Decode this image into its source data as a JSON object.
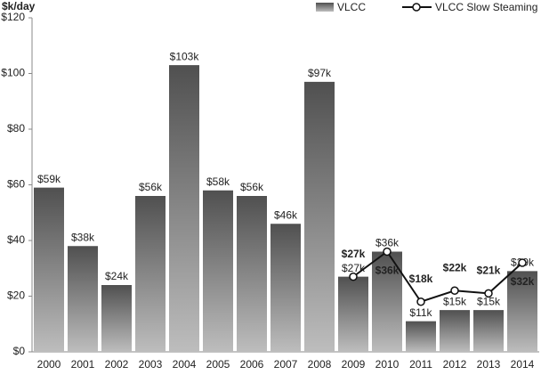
{
  "chart_data": {
    "type": "bar",
    "y_label": "$k/day",
    "categories": [
      "2000",
      "2001",
      "2002",
      "2003",
      "2004",
      "2005",
      "2006",
      "2007",
      "2008",
      "2009",
      "2010",
      "2011",
      "2012",
      "2013",
      "2014"
    ],
    "series": [
      {
        "name": "VLCC",
        "type": "bar",
        "color": "#8a8a8a",
        "values": [
          59,
          38,
          24,
          56,
          103,
          58,
          56,
          46,
          97,
          27,
          36,
          11,
          15,
          15,
          29
        ],
        "value_labels": [
          "$59k",
          "$38k",
          "$24k",
          "$56k",
          "$103k",
          "$58k",
          "$56k",
          "$46k",
          "$97k",
          "$27k",
          "$36k",
          "$11k",
          "$15k",
          "$15k",
          "$29k"
        ]
      },
      {
        "name": "VLCC Slow Steaming",
        "type": "line",
        "color": "#111111",
        "values": [
          null,
          null,
          null,
          null,
          null,
          null,
          null,
          null,
          null,
          27,
          36,
          18,
          22,
          21,
          32
        ],
        "value_labels": [
          null,
          null,
          null,
          null,
          null,
          null,
          null,
          null,
          null,
          "$27k",
          "$36k",
          "$18k",
          "$22k",
          "$21k",
          "$32k"
        ]
      }
    ],
    "ylim": [
      0,
      120
    ],
    "yticks": [
      {
        "value": 0,
        "label": "$0"
      },
      {
        "value": 20,
        "label": "$20"
      },
      {
        "value": 40,
        "label": "$40"
      },
      {
        "value": 60,
        "label": "$60"
      },
      {
        "value": 80,
        "label": "$80"
      },
      {
        "value": 100,
        "label": "$100"
      },
      {
        "value": 120,
        "label": "$120"
      }
    ],
    "grid": false,
    "legend": "top-right"
  }
}
